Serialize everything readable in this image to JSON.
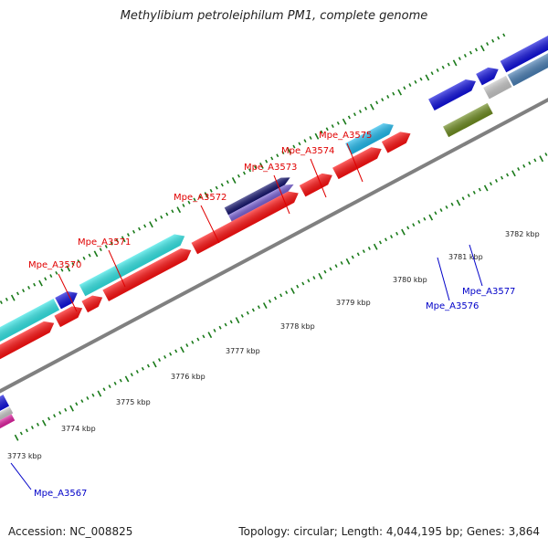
{
  "title": "Methylibium petroleiphilum PM1, complete genome",
  "footer": {
    "accession": "Accession: NC_008825",
    "summary": "Topology: circular; Length: 4,044,195 bp; Genes: 3,864"
  },
  "ticks": [
    "3773 kbp",
    "3774 kbp",
    "3775 kbp",
    "3776 kbp",
    "3777 kbp",
    "3778 kbp",
    "3779 kbp",
    "3780 kbp",
    "3781 kbp",
    "3782 kbp"
  ],
  "gene_labels": {
    "forward": [
      "Mpe_A3570",
      "Mpe_A3571",
      "Mpe_A3572",
      "Mpe_A3573",
      "Mpe_A3574",
      "Mpe_A3575"
    ],
    "reverse": [
      "Mpe_A3567",
      "Mpe_A3576",
      "Mpe_A3577"
    ]
  },
  "colors": {
    "forward_label": "#e00000",
    "reverse_label": "#0000c8",
    "red_gene": "#ff1010",
    "cyan_gene": "#33e6e6",
    "sky_gene": "#22bbee",
    "blue_gene": "#1010dd",
    "navy_gene": "#15156e",
    "purple_gene": "#7a62d6",
    "steel_gene": "#4a7fb5",
    "olive_gene": "#6e8c20",
    "gray_gene": "#c8c8c8",
    "magenta_gene": "#e020a0",
    "backbone": "#808080",
    "tick": "#1a7a1a"
  }
}
